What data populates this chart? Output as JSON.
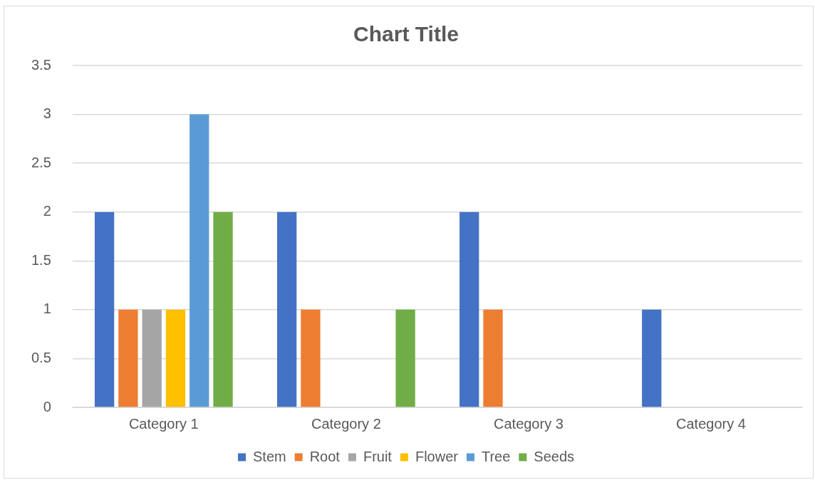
{
  "chart_data": {
    "type": "bar",
    "title": "Chart Title",
    "categories": [
      "Category 1",
      "Category 2",
      "Category 3",
      "Category 4"
    ],
    "series": [
      {
        "name": "Stem",
        "color": "#4472c4",
        "values": [
          2,
          2,
          2,
          1
        ]
      },
      {
        "name": "Root",
        "color": "#ed7d31",
        "values": [
          1,
          1,
          1,
          0
        ]
      },
      {
        "name": "Fruit",
        "color": "#a5a5a5",
        "values": [
          1,
          0,
          0,
          0
        ]
      },
      {
        "name": "Flower",
        "color": "#ffc000",
        "values": [
          1,
          0,
          0,
          0
        ]
      },
      {
        "name": "Tree",
        "color": "#5b9bd5",
        "values": [
          3,
          0,
          0,
          0
        ]
      },
      {
        "name": "Seeds",
        "color": "#70ad47",
        "values": [
          2,
          1,
          0,
          0
        ]
      }
    ],
    "ylim": [
      0,
      3.5
    ],
    "yticks": [
      0,
      0.5,
      1,
      1.5,
      2,
      2.5,
      3,
      3.5
    ],
    "grid": "y",
    "legend": "bottom"
  }
}
